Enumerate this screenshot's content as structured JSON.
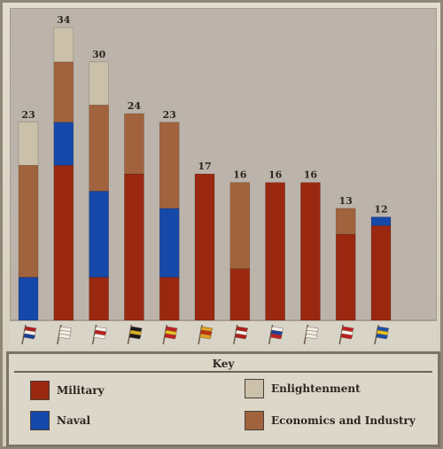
{
  "chart_data": {
    "type": "bar",
    "stacked": true,
    "ylim": [
      0,
      34
    ],
    "totals": [
      23,
      34,
      30,
      24,
      23,
      17,
      16,
      16,
      16,
      13,
      12
    ],
    "categories": [
      "netherlands",
      "ottoman",
      "britain",
      "germany",
      "spain",
      "portugal",
      "ottoman-red",
      "russia",
      "ottoman-white",
      "dutch-red",
      "sweden"
    ],
    "series": [
      {
        "name": "Military",
        "color": "#9a2810",
        "values": [
          0,
          18,
          5,
          17,
          5,
          17,
          6,
          16,
          16,
          10,
          11
        ]
      },
      {
        "name": "Naval",
        "color": "#1548a8",
        "values": [
          5,
          5,
          10,
          0,
          8,
          0,
          0,
          0,
          0,
          0,
          1
        ]
      },
      {
        "name": "Economics and Industry",
        "color": "#a0633d",
        "values": [
          13,
          7,
          10,
          7,
          10,
          0,
          10,
          0,
          0,
          3,
          0
        ]
      },
      {
        "name": "Enlightenment",
        "color": "#cbc0a9",
        "values": [
          5,
          4,
          5,
          0,
          0,
          0,
          0,
          0,
          0,
          0,
          0
        ]
      }
    ],
    "legend_position": "bottom",
    "grid": false
  },
  "flags": [
    {
      "icon": "netherlands-flag-icon",
      "colors": [
        "#b01e1e",
        "#f4f0e8",
        "#1c3f9a"
      ]
    },
    {
      "icon": "ottoman-flag-icon",
      "colors": [
        "#f0ece2",
        "#f0ece2",
        "#f0ece2"
      ]
    },
    {
      "icon": "britain-flag-icon",
      "colors": [
        "#f4f0e8",
        "#c02020",
        "#f4f0e8"
      ]
    },
    {
      "icon": "germany-flag-icon",
      "colors": [
        "#1a1a1a",
        "#d8b020",
        "#1a1a1a"
      ]
    },
    {
      "icon": "spain-flag-icon",
      "colors": [
        "#c02020",
        "#e8c020",
        "#c02020"
      ]
    },
    {
      "icon": "portugal-flag-icon",
      "colors": [
        "#e0a020",
        "#c03010",
        "#e0a020"
      ]
    },
    {
      "icon": "ottoman-red-flag-icon",
      "colors": [
        "#b01e1e",
        "#f4f0e8",
        "#b01e1e"
      ]
    },
    {
      "icon": "russia-flag-icon",
      "colors": [
        "#f4f0e8",
        "#1c3f9a",
        "#c02020"
      ]
    },
    {
      "icon": "white-flag-icon",
      "colors": [
        "#f0ece2",
        "#f0ece2",
        "#f0ece2"
      ]
    },
    {
      "icon": "red-white-flag-icon",
      "colors": [
        "#c02020",
        "#f4f0e8",
        "#c02020"
      ]
    },
    {
      "icon": "sweden-flag-icon",
      "colors": [
        "#1c4fa8",
        "#e8c020",
        "#1c4fa8"
      ]
    }
  ],
  "key": {
    "title": "Key",
    "items": [
      {
        "label": "Military",
        "color": "#9a2810"
      },
      {
        "label": "Naval",
        "color": "#1548a8"
      },
      {
        "label": "Enlightenment",
        "color": "#cbc0a9"
      },
      {
        "label": "Economics and Industry",
        "color": "#a0633d"
      }
    ]
  }
}
